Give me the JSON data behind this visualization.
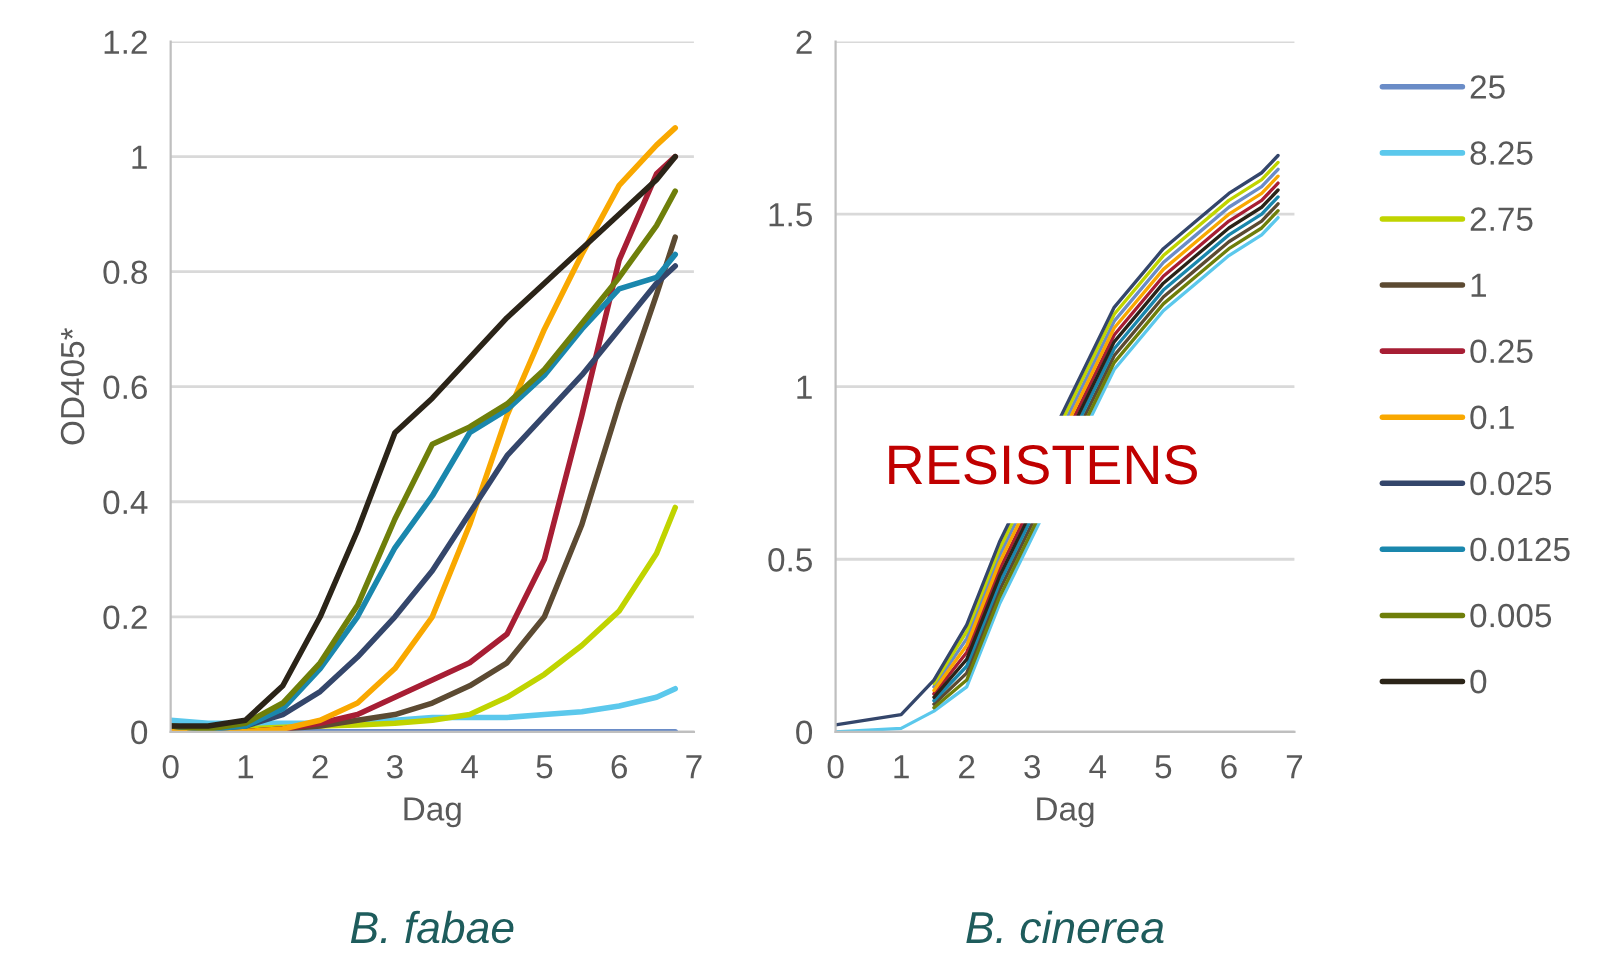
{
  "chart_data": [
    {
      "type": "line",
      "title": "B. fabae",
      "xlabel": "Dag",
      "ylabel": "OD405*",
      "xlim": [
        0,
        7
      ],
      "xticks": [
        0,
        1,
        2,
        3,
        4,
        5,
        6,
        7
      ],
      "ylim": [
        0,
        1.2
      ],
      "yticks": [
        0,
        0.2,
        0.4,
        0.6,
        0.8,
        1,
        1.2
      ],
      "grid": "y",
      "legend": "right",
      "line_style": "solid",
      "marker": "none",
      "x": [
        0,
        0.5,
        1,
        1.5,
        2,
        2.5,
        3,
        3.5,
        4,
        4.5,
        5,
        5.5,
        6,
        6.5,
        6.75
      ],
      "series": [
        {
          "name": "25",
          "color": "#6a8cc7",
          "values": [
            0.005,
            0,
            0,
            0,
            0,
            0,
            0,
            0,
            0,
            0,
            0,
            0,
            0,
            0,
            0
          ]
        },
        {
          "name": "8.25",
          "color": "#5bc8ec",
          "values": [
            0.02,
            0.015,
            0.015,
            0.015,
            0.015,
            0.02,
            0.02,
            0.025,
            0.025,
            0.025,
            0.03,
            0.035,
            0.045,
            0.06,
            0.075
          ]
        },
        {
          "name": "2.75",
          "color": "#c0d400",
          "values": [
            0.005,
            0.005,
            0.005,
            0.008,
            0.01,
            0.012,
            0.015,
            0.02,
            0.03,
            0.06,
            0.1,
            0.15,
            0.21,
            0.31,
            0.39
          ]
        },
        {
          "name": "1",
          "color": "#5c4a32",
          "values": [
            0,
            0,
            0,
            0.005,
            0.01,
            0.02,
            0.03,
            0.05,
            0.08,
            0.12,
            0.2,
            0.36,
            0.57,
            0.76,
            0.86
          ]
        },
        {
          "name": "0.25",
          "color": "#a71e34",
          "values": [
            0,
            0,
            0,
            0.005,
            0.015,
            0.03,
            0.06,
            0.09,
            0.12,
            0.17,
            0.3,
            0.55,
            0.82,
            0.97,
            1.0
          ]
        },
        {
          "name": "0.1",
          "color": "#f9a800",
          "values": [
            0,
            0,
            0,
            0.005,
            0.02,
            0.05,
            0.11,
            0.2,
            0.36,
            0.55,
            0.7,
            0.83,
            0.95,
            1.02,
            1.05
          ]
        },
        {
          "name": "0.025",
          "color": "#34466b",
          "values": [
            0.01,
            0.005,
            0.01,
            0.03,
            0.07,
            0.13,
            0.2,
            0.28,
            0.38,
            0.48,
            0.55,
            0.62,
            0.7,
            0.78,
            0.81
          ]
        },
        {
          "name": "0.0125",
          "color": "#1a87ad",
          "values": [
            0.01,
            0.005,
            0.01,
            0.04,
            0.11,
            0.2,
            0.32,
            0.41,
            0.52,
            0.56,
            0.62,
            0.7,
            0.77,
            0.79,
            0.83
          ]
        },
        {
          "name": "0.005",
          "color": "#6f7f0a",
          "values": [
            0.01,
            0.005,
            0.015,
            0.05,
            0.12,
            0.22,
            0.37,
            0.5,
            0.53,
            0.57,
            0.63,
            0.71,
            0.79,
            0.88,
            0.94
          ]
        },
        {
          "name": "0",
          "color": "#2b2418",
          "values": [
            0.01,
            0.01,
            0.02,
            0.08,
            0.2,
            0.35,
            0.52,
            0.58,
            0.65,
            0.72,
            0.78,
            0.84,
            0.9,
            0.96,
            1.0
          ]
        }
      ]
    },
    {
      "type": "line",
      "title": "B. cinerea",
      "xlabel": "Dag",
      "xlim": [
        0,
        7
      ],
      "xticks": [
        0,
        1,
        2,
        3,
        4,
        5,
        6,
        7
      ],
      "ylim": [
        0,
        2
      ],
      "yticks": [
        0,
        0.5,
        1,
        1.5,
        2
      ],
      "grid": "y",
      "line_style": "solid",
      "marker": "none",
      "annotations": [
        "RESISTENS"
      ],
      "x": [
        0,
        1,
        1.5,
        2,
        2.5,
        4.25,
        5,
        5.5,
        6,
        6.5,
        6.75
      ],
      "series": [
        {
          "name": "25",
          "color": "#6a8cc7",
          "values": [
            null,
            null,
            0.13,
            0.27,
            0.51,
            1.19,
            1.36,
            1.44,
            1.52,
            1.58,
            1.63
          ]
        },
        {
          "name": "8.25",
          "color": "#5bc8ec",
          "values": [
            0.0,
            0.01,
            0.06,
            0.13,
            0.37,
            1.05,
            1.22,
            1.3,
            1.38,
            1.44,
            1.49
          ]
        },
        {
          "name": "2.75",
          "color": "#c0d400",
          "values": [
            null,
            null,
            0.14,
            0.29,
            0.53,
            1.21,
            1.38,
            1.46,
            1.54,
            1.6,
            1.65
          ]
        },
        {
          "name": "1",
          "color": "#5c4a32",
          "values": [
            null,
            null,
            0.08,
            0.17,
            0.41,
            1.09,
            1.26,
            1.34,
            1.42,
            1.48,
            1.53
          ]
        },
        {
          "name": "0.25",
          "color": "#a71e34",
          "values": [
            null,
            null,
            0.11,
            0.23,
            0.47,
            1.15,
            1.32,
            1.4,
            1.48,
            1.54,
            1.59
          ]
        },
        {
          "name": "0.1",
          "color": "#f9a800",
          "values": [
            null,
            null,
            0.12,
            0.25,
            0.49,
            1.17,
            1.34,
            1.42,
            1.5,
            1.56,
            1.61
          ]
        },
        {
          "name": "0.025",
          "color": "#34466b",
          "values": [
            0.02,
            0.05,
            0.15,
            0.31,
            0.55,
            1.23,
            1.4,
            1.48,
            1.56,
            1.62,
            1.67
          ]
        },
        {
          "name": "0.0125",
          "color": "#1a87ad",
          "values": [
            null,
            null,
            0.09,
            0.19,
            0.43,
            1.11,
            1.28,
            1.36,
            1.44,
            1.5,
            1.55
          ]
        },
        {
          "name": "0.005",
          "color": "#6f7f0a",
          "values": [
            null,
            null,
            0.07,
            0.15,
            0.39,
            1.07,
            1.24,
            1.32,
            1.4,
            1.46,
            1.51
          ]
        },
        {
          "name": "0",
          "color": "#2b2418",
          "values": [
            null,
            null,
            0.1,
            0.21,
            0.45,
            1.13,
            1.3,
            1.38,
            1.46,
            1.52,
            1.57
          ]
        }
      ]
    }
  ]
}
